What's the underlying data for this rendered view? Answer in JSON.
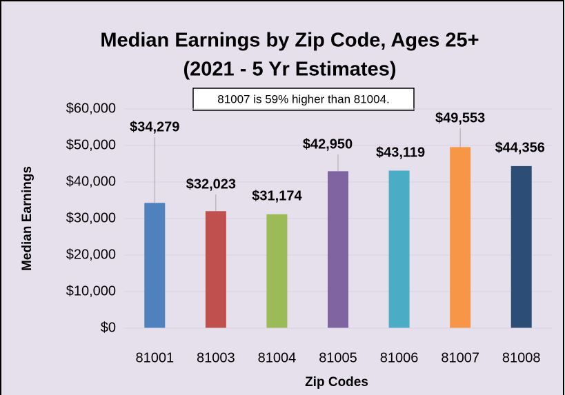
{
  "chart_data": {
    "type": "bar",
    "title": "Median Earnings by Zip Code, Ages 25+",
    "subtitle": "(2021 - 5 Yr Estimates)",
    "annotation": "81007  is 59% higher than 81004.",
    "x_label": "Zip Codes",
    "y_label": "Median Earnings",
    "categories": [
      "81001",
      "81003",
      "81004",
      "81005",
      "81006",
      "81007",
      "81008"
    ],
    "values": [
      34279,
      32023,
      31174,
      42950,
      43119,
      49553,
      44356
    ],
    "value_labels": [
      "$34,279",
      "$32,023",
      "$31,174",
      "$42,950",
      "$43,119",
      "$49,553",
      "$44,356"
    ],
    "colors": [
      "#4f81bd",
      "#c0504d",
      "#9bbb59",
      "#8064a2",
      "#4bacc6",
      "#f79646",
      "#2c4d75"
    ],
    "ylim": [
      0,
      60000
    ],
    "yticks": [
      {
        "value": 0,
        "label": "$0"
      },
      {
        "value": 10000,
        "label": "$10,000"
      },
      {
        "value": 20000,
        "label": "$20,000"
      },
      {
        "value": 30000,
        "label": "$30,000"
      },
      {
        "value": 40000,
        "label": "$40,000"
      },
      {
        "value": 50000,
        "label": "$50,000"
      },
      {
        "value": 60000,
        "label": "$60,000"
      }
    ],
    "grid": true
  }
}
